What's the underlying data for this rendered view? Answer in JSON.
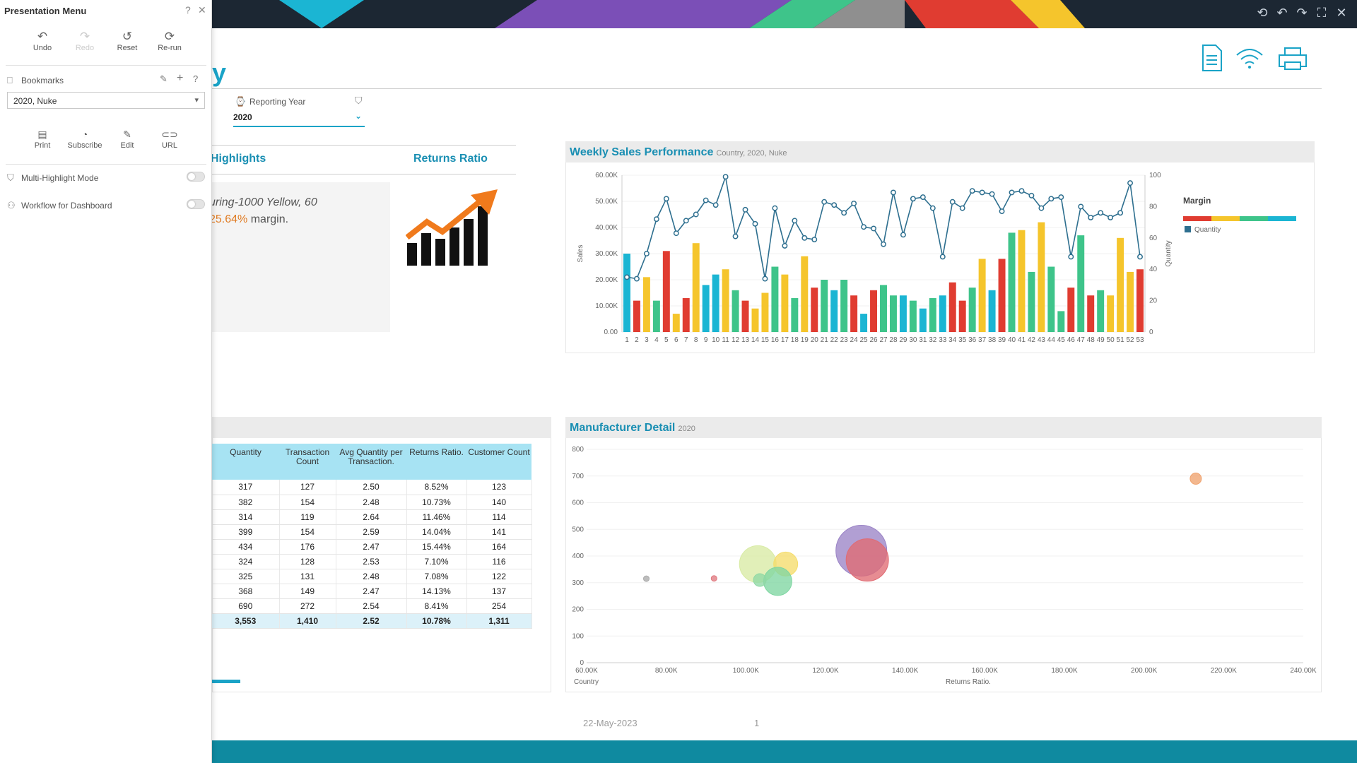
{
  "menu": {
    "title": "Presentation Menu",
    "help_icon": "question-icon",
    "close_icon": "close-icon",
    "tools": [
      {
        "label": "Undo",
        "icon": "undo-icon",
        "enabled": true
      },
      {
        "label": "Redo",
        "icon": "redo-icon",
        "enabled": false
      },
      {
        "label": "Reset",
        "icon": "reset-icon",
        "enabled": true
      },
      {
        "label": "Re-run",
        "icon": "rerun-icon",
        "enabled": true
      }
    ],
    "bookmarks_label": "Bookmarks",
    "bookmark_value": "2020, Nuke",
    "actions": [
      {
        "label": "Print",
        "icon": "print-icon"
      },
      {
        "label": "Subscribe",
        "icon": "rss-icon"
      },
      {
        "label": "Edit",
        "icon": "pencil-icon"
      },
      {
        "label": "URL",
        "icon": "link-icon"
      }
    ],
    "multi_highlight_label": "Multi-Highlight Mode",
    "workflow_label": "Workflow for Dashboard"
  },
  "report": {
    "title_fragment": "y",
    "filter_label": "Reporting Year",
    "filter_value": "2020",
    "highlights_title": "Highlights",
    "highlights_line1": "uring-1000 Yellow, 60",
    "highlights_pct": "25.64%",
    "highlights_tail": " margin.",
    "returns_title": "Returns Ratio",
    "footer_date": "22-May-2023",
    "footer_page": "1"
  },
  "weekly": {
    "title": "Weekly Sales Performance",
    "subtitle": "Country, 2020, Nuke",
    "ylabel_left": "Sales",
    "ylabel_right": "Quantity",
    "legend_title": "Margin",
    "legend_item": "Quantity",
    "colors": [
      "#e03c31",
      "#f5c52c",
      "#3ec48a",
      "#1bb5d3"
    ]
  },
  "manufacturer": {
    "title": "Manufacturer Detail",
    "subtitle": "2020",
    "xlabel_left": "Country",
    "xlabel": "Returns Ratio."
  },
  "table": {
    "headers": [
      "Quantity",
      "Transaction Count",
      "Avg Quantity per Transaction.",
      "Returns Ratio.",
      "Customer Count"
    ],
    "rows": [
      [
        "317",
        "127",
        "2.50",
        "8.52%",
        "123"
      ],
      [
        "382",
        "154",
        "2.48",
        "10.73%",
        "140"
      ],
      [
        "314",
        "119",
        "2.64",
        "11.46%",
        "114"
      ],
      [
        "399",
        "154",
        "2.59",
        "14.04%",
        "141"
      ],
      [
        "434",
        "176",
        "2.47",
        "15.44%",
        "164"
      ],
      [
        "324",
        "128",
        "2.53",
        "7.10%",
        "116"
      ],
      [
        "325",
        "131",
        "2.48",
        "7.08%",
        "122"
      ],
      [
        "368",
        "149",
        "2.47",
        "14.13%",
        "137"
      ],
      [
        "690",
        "272",
        "2.54",
        "8.41%",
        "254"
      ]
    ],
    "total": [
      "3,553",
      "1,410",
      "2.52",
      "10.78%",
      "1,311"
    ]
  },
  "chart_data": [
    {
      "type": "bar",
      "title": "Weekly Sales Performance",
      "subtitle": "Country, 2020, Nuke",
      "ylabel": "Sales",
      "y2label": "Quantity",
      "ylim": [
        0,
        60000
      ],
      "y2lim": [
        0,
        100
      ],
      "yticks": [
        "0.00",
        "10.00K",
        "20.00K",
        "30.00K",
        "40.00K",
        "50.00K",
        "60.00K"
      ],
      "y2ticks": [
        "0",
        "20",
        "40",
        "60",
        "80",
        "100"
      ],
      "x": [
        1,
        2,
        3,
        4,
        5,
        6,
        7,
        8,
        9,
        10,
        11,
        12,
        13,
        14,
        15,
        16,
        17,
        18,
        19,
        20,
        21,
        22,
        23,
        24,
        25,
        26,
        27,
        28,
        29,
        30,
        31,
        32,
        33,
        34,
        35,
        36,
        37,
        38,
        39,
        40,
        41,
        42,
        43,
        44,
        45,
        46,
        47,
        48,
        49,
        50,
        51,
        52,
        53
      ],
      "series": [
        {
          "name": "Sales",
          "type": "bar",
          "values": [
            30000,
            12000,
            21000,
            12000,
            31000,
            7000,
            13000,
            34000,
            18000,
            22000,
            24000,
            16000,
            12000,
            9000,
            15000,
            25000,
            22000,
            13000,
            29000,
            17000,
            20000,
            16000,
            20000,
            14000,
            7000,
            16000,
            18000,
            14000,
            14000,
            12000,
            9000,
            13000,
            14000,
            19000,
            12000,
            17000,
            28000,
            16000,
            28000,
            38000,
            39000,
            23000,
            42000,
            25000,
            8000,
            17000,
            37000,
            14000,
            16000,
            14000,
            36000,
            23000,
            24000
          ],
          "margin_colors": [
            3,
            0,
            1,
            2,
            0,
            1,
            0,
            1,
            3,
            3,
            1,
            2,
            0,
            1,
            1,
            2,
            1,
            2,
            1,
            0,
            2,
            3,
            2,
            0,
            3,
            0,
            2,
            2,
            3,
            2,
            3,
            2,
            3,
            0,
            0,
            2,
            1,
            3,
            0,
            2,
            1,
            2,
            1,
            2,
            2,
            0,
            2,
            0,
            2,
            1,
            1,
            1,
            0
          ]
        },
        {
          "name": "Quantity",
          "type": "line",
          "values": [
            35,
            34,
            50,
            72,
            85,
            63,
            71,
            75,
            84,
            81,
            99,
            61,
            78,
            69,
            34,
            79,
            55,
            71,
            60,
            59,
            83,
            81,
            76,
            82,
            67,
            66,
            56,
            89,
            62,
            85,
            86,
            79,
            48,
            83,
            79,
            90,
            89,
            88,
            77,
            89,
            90,
            87,
            79,
            85,
            86,
            48,
            80,
            73,
            76,
            73,
            76,
            95,
            48
          ]
        }
      ]
    },
    {
      "type": "scatter",
      "title": "Manufacturer Detail",
      "subtitle": "2020",
      "xlabel": "Returns Ratio.",
      "xlim": [
        60000,
        240000
      ],
      "ylim": [
        0,
        800
      ],
      "xticks": [
        "60.00K",
        "80.00K",
        "100.00K",
        "120.00K",
        "140.00K",
        "160.00K",
        "180.00K",
        "200.00K",
        "220.00K",
        "240.00K"
      ],
      "yticks": [
        "0",
        "100",
        "200",
        "300",
        "400",
        "500",
        "600",
        "700",
        "800"
      ],
      "points": [
        {
          "x": 75000,
          "y": 315,
          "size": 4,
          "color": "#aaaaaa"
        },
        {
          "x": 92000,
          "y": 316,
          "size": 4,
          "color": "#e07a80"
        },
        {
          "x": 103000,
          "y": 370,
          "size": 26,
          "color": "#d8eba4"
        },
        {
          "x": 110000,
          "y": 370,
          "size": 17,
          "color": "#f5dd6c"
        },
        {
          "x": 108000,
          "y": 305,
          "size": 20,
          "color": "#7fd6a2"
        },
        {
          "x": 103500,
          "y": 310,
          "size": 9,
          "color": "#8fd8a5"
        },
        {
          "x": 129000,
          "y": 420,
          "size": 36,
          "color": "#9b84c6"
        },
        {
          "x": 130500,
          "y": 385,
          "size": 30,
          "color": "#e06b73"
        },
        {
          "x": 213000,
          "y": 690,
          "size": 8,
          "color": "#f0a36e"
        }
      ]
    }
  ]
}
